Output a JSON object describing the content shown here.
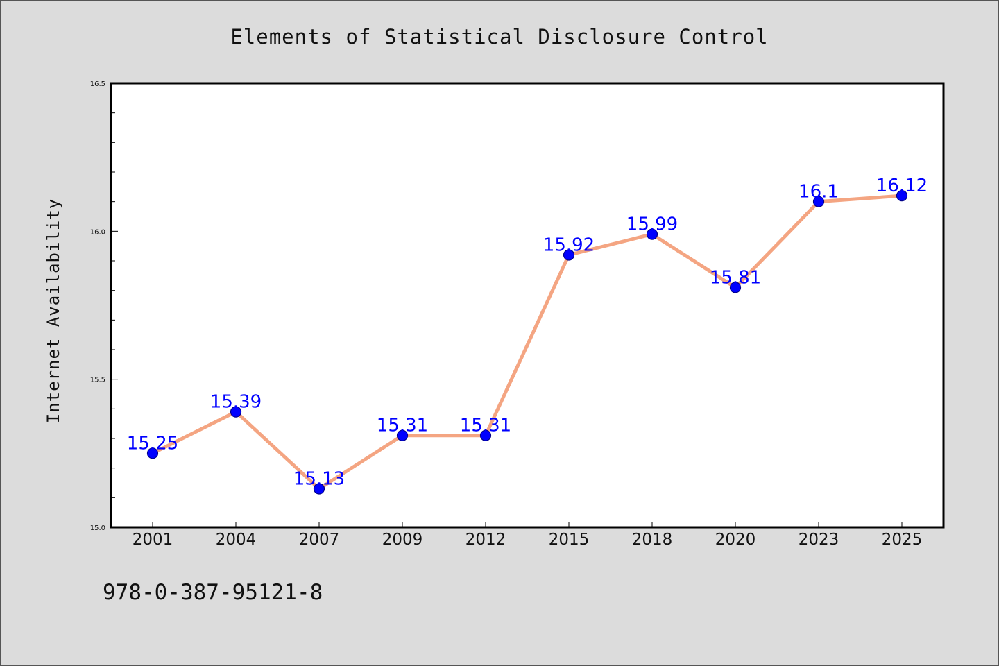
{
  "chart_data": {
    "type": "line",
    "title": "Elements of Statistical Disclosure Control",
    "xlabel": "",
    "ylabel": "Internet Availability",
    "categories": [
      "2001",
      "2004",
      "2007",
      "2009",
      "2012",
      "2015",
      "2018",
      "2020",
      "2023",
      "2025"
    ],
    "series": [
      {
        "values": [
          15.25,
          15.39,
          15.13,
          15.31,
          15.31,
          15.92,
          15.99,
          15.81,
          16.1,
          16.12
        ]
      }
    ],
    "data_labels": [
      "15.25",
      "15.39",
      "15.13",
      "15.31",
      "15.31",
      "15.92",
      "15.99",
      "15.81",
      "16.1",
      "16.12"
    ],
    "ylim": [
      15.0,
      16.5
    ],
    "y_ticks": [
      "15.0",
      "15.5",
      "16.0",
      "16.5"
    ],
    "grid": false,
    "legend": "none",
    "colors": {
      "line": "#f4a582",
      "marker": "#0000ff",
      "marker_edge": "#00008b",
      "data_label": "#0000ff",
      "plot_background": "#ffffff",
      "figure_background": "#dcdcdc"
    }
  },
  "footer": {
    "text": "978-0-387-95121-8"
  }
}
